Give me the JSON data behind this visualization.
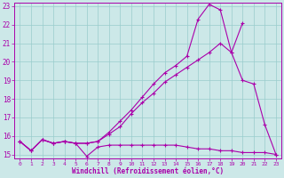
{
  "xlabel": "Windchill (Refroidissement éolien,°C)",
  "xlim": [
    -0.5,
    23.5
  ],
  "ylim": [
    14.8,
    23.2
  ],
  "xticks": [
    0,
    1,
    2,
    3,
    4,
    5,
    6,
    7,
    8,
    9,
    10,
    11,
    12,
    13,
    14,
    15,
    16,
    17,
    18,
    19,
    20,
    21,
    22,
    23
  ],
  "yticks": [
    15,
    16,
    17,
    18,
    19,
    20,
    21,
    22,
    23
  ],
  "bg_color": "#cce8e8",
  "line_color": "#aa00aa",
  "grid_color": "#99cccc",
  "series": [
    {
      "x": [
        0,
        1,
        2,
        3,
        4,
        5,
        6,
        7,
        8,
        9,
        10,
        11,
        12,
        13,
        14,
        15,
        16,
        17,
        18,
        19,
        20,
        21,
        22,
        23
      ],
      "y": [
        15.7,
        15.2,
        15.8,
        15.6,
        15.7,
        15.6,
        14.9,
        15.4,
        15.5,
        15.5,
        15.5,
        15.5,
        15.5,
        15.5,
        15.5,
        15.4,
        15.3,
        15.3,
        15.2,
        15.2,
        15.1,
        15.1,
        15.1,
        15.0
      ]
    },
    {
      "x": [
        0,
        1,
        2,
        3,
        4,
        5,
        6,
        7,
        8,
        9,
        10,
        11,
        12,
        13,
        14,
        15,
        16,
        17,
        18,
        19,
        20,
        21,
        22,
        23
      ],
      "y": [
        15.7,
        15.2,
        15.8,
        15.6,
        15.7,
        15.6,
        15.6,
        15.7,
        16.1,
        16.5,
        17.2,
        17.8,
        18.3,
        18.9,
        19.3,
        19.7,
        20.1,
        20.5,
        21.0,
        20.5,
        22.1,
        null,
        null,
        null
      ]
    },
    {
      "x": [
        0,
        1,
        2,
        3,
        4,
        5,
        6,
        7,
        8,
        9,
        10,
        11,
        12,
        13,
        14,
        15,
        16,
        17,
        18,
        19,
        20,
        21,
        22,
        23
      ],
      "y": [
        15.7,
        15.2,
        15.8,
        15.6,
        15.7,
        15.6,
        15.6,
        15.7,
        16.2,
        16.8,
        17.4,
        18.1,
        18.8,
        19.4,
        19.8,
        20.3,
        22.3,
        23.1,
        22.8,
        20.5,
        19.0,
        18.8,
        16.6,
        15.0
      ]
    }
  ]
}
